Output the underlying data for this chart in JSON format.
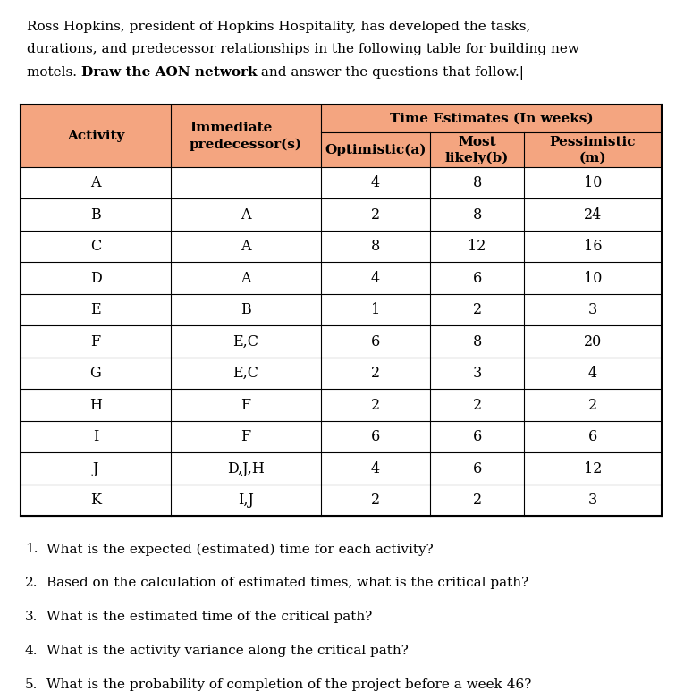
{
  "header_bg_color": "#F4A580",
  "line1": "Ross Hopkins, president of Hopkins Hospitality, has developed the tasks,",
  "line2": "durations, and predecessor relationships in the following table for building new",
  "line3_pre": "motels. ",
  "line3_bold": "Draw the AON network",
  "line3_post": " and answer the questions that follow.",
  "activities": [
    "A",
    "B",
    "C",
    "D",
    "E",
    "F",
    "G",
    "H",
    "I",
    "J",
    "K"
  ],
  "predecessors": [
    "_",
    "A",
    "A",
    "A",
    "B",
    "E,C",
    "E,C",
    "F",
    "F",
    "D,J,H",
    "I,J"
  ],
  "optimistic": [
    4,
    2,
    8,
    4,
    1,
    6,
    2,
    2,
    6,
    4,
    2
  ],
  "most_likely": [
    8,
    8,
    12,
    6,
    2,
    8,
    3,
    2,
    6,
    6,
    2
  ],
  "pessimistic": [
    10,
    24,
    16,
    10,
    3,
    20,
    4,
    2,
    6,
    12,
    3
  ],
  "questions": [
    "What is the expected (estimated) time for each activity?",
    "Based on the calculation of estimated times, what is the critical path?",
    "What is the estimated time of the critical path?",
    "What is the activity variance along the critical path?",
    "What is the probability of completion of the project before a week 46?"
  ],
  "fig_width": 7.65,
  "fig_height": 7.73,
  "font_size": 11.0,
  "table_font_size": 11.0
}
